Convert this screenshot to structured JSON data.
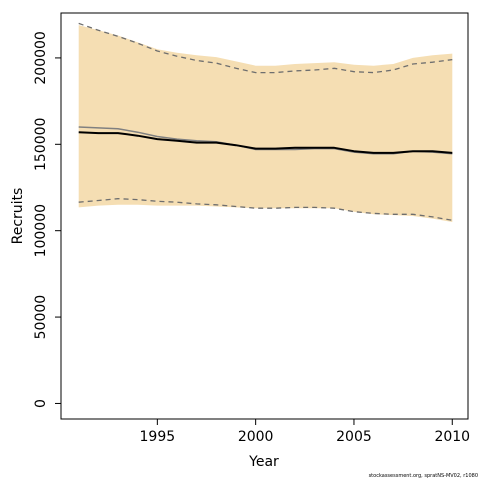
{
  "chart_data": {
    "type": "line",
    "title": "",
    "xlabel": "Year",
    "ylabel": "Recruits",
    "xlim": [
      1990.1,
      2010.8
    ],
    "ylim": [
      -9000,
      226000
    ],
    "x_ticks": [
      1995,
      2000,
      2005,
      2010
    ],
    "y_ticks": [
      0,
      50000,
      100000,
      150000,
      200000
    ],
    "x": [
      1991,
      1992,
      1993,
      1994,
      1995,
      1996,
      1997,
      1998,
      1999,
      2000,
      2001,
      2002,
      2003,
      2004,
      2005,
      2006,
      2007,
      2008,
      2009,
      2010
    ],
    "band": {
      "upper": [
        219000,
        216000,
        213000,
        209000,
        205000,
        203000,
        201500,
        200500,
        198000,
        195500,
        195500,
        196500,
        197000,
        197500,
        196000,
        195500,
        196500,
        200000,
        201500,
        202500
      ],
      "lower": [
        113500,
        114500,
        115000,
        115000,
        114500,
        114500,
        114500,
        114000,
        113500,
        113000,
        113000,
        113000,
        113000,
        113000,
        111000,
        109500,
        109000,
        108500,
        107000,
        105000
      ]
    },
    "series": [
      {
        "style": "solid-black",
        "values": [
          157000,
          156500,
          156500,
          155000,
          153000,
          152000,
          151000,
          151000,
          149500,
          147500,
          147500,
          148000,
          148000,
          148000,
          146000,
          145000,
          145000,
          146000,
          146000,
          145000
        ]
      },
      {
        "style": "solid-grey",
        "values": [
          160000,
          159500,
          159000,
          157000,
          154500,
          153000,
          152000,
          151500,
          149500,
          147000,
          147000,
          147000,
          147500,
          147500,
          145500,
          144500,
          144500,
          146000,
          145500,
          144500
        ]
      },
      {
        "style": "dashed-grey-upper",
        "values": [
          220000,
          216000,
          212500,
          208500,
          204000,
          201000,
          198500,
          197000,
          194000,
          191500,
          191500,
          192500,
          193000,
          194000,
          192000,
          191500,
          193000,
          196500,
          197500,
          199000
        ]
      },
      {
        "style": "dashed-grey-lower",
        "values": [
          116500,
          117500,
          118500,
          118000,
          117000,
          116500,
          115500,
          115000,
          114000,
          113000,
          113000,
          113500,
          113500,
          113000,
          111000,
          110000,
          109500,
          109500,
          108000,
          106000
        ]
      }
    ],
    "colors": {
      "band": "#f5deb3",
      "main": "#000000",
      "alt": "#808080",
      "dashed": "#6e6e6e",
      "frame": "#000000"
    },
    "grid": false,
    "legend": "none",
    "credit": "stockassessment.org, spratNS-MV02, r1080"
  }
}
